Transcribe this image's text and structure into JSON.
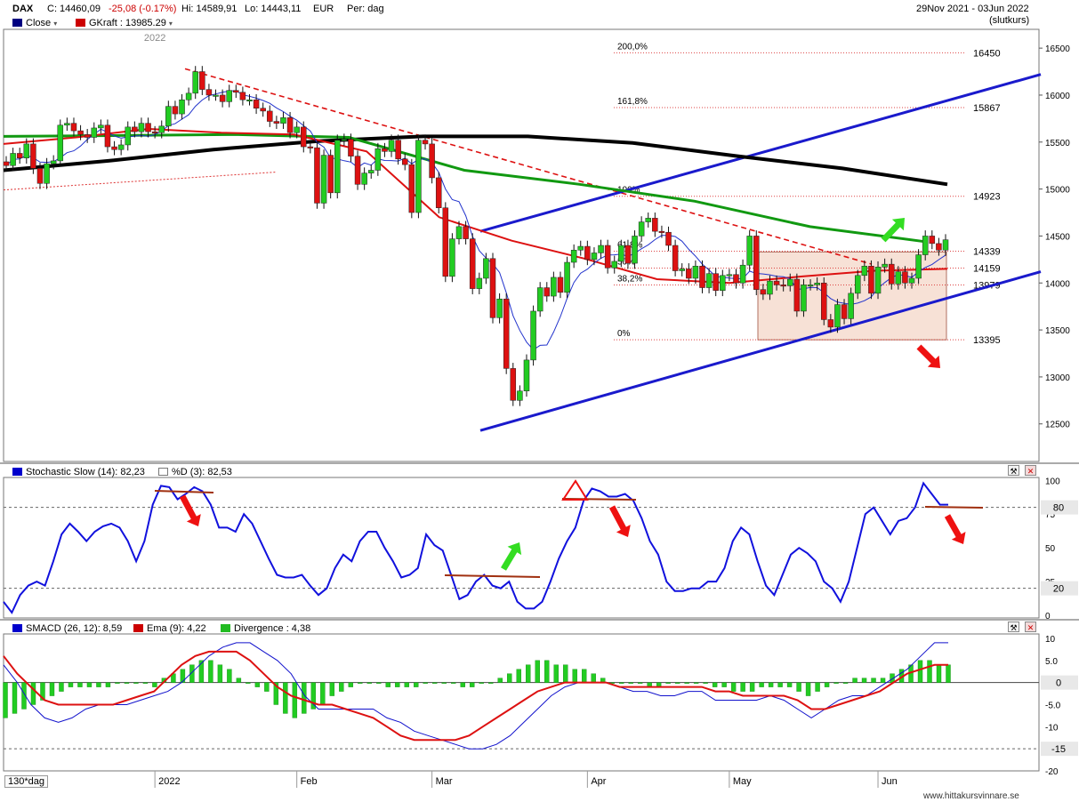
{
  "header": {
    "symbol": "DAX",
    "close": "C: 14460,09",
    "change": "-25,08 (-0.17%)",
    "high": "Hi: 14589,91",
    "low": "Lo: 14443,11",
    "currency": "EUR",
    "period": "Per: dag",
    "date_range": "29Nov 2021 - 03Jun 2022",
    "date_note": "(slutkurs)",
    "legend": [
      {
        "label": "Close",
        "color": "#000080"
      },
      {
        "label": "GKraft : 13985.29",
        "color": "#cc0000"
      }
    ]
  },
  "colors": {
    "up_candle": "#22cc22",
    "down_candle": "#dd1111",
    "trendline": "#1a1acc",
    "ma_black": "#000000",
    "ma_green": "#119911",
    "ma_red": "#dd1111",
    "arrow_red": "#ee1111",
    "arrow_green": "#33dd22"
  },
  "footer": {
    "period": "130*dag",
    "watermark": "www.hittakursvinnare.se"
  },
  "chart_data": [
    {
      "type": "candlestick",
      "title": "DAX",
      "ylim": [
        12100,
        16700
      ],
      "yticks": [
        12500,
        13000,
        13500,
        14000,
        14500,
        15000,
        15500,
        16000,
        16500
      ],
      "x_tick_labels": [
        "2022",
        "Feb",
        "Mar",
        "Apr",
        "May",
        "Jun"
      ],
      "year_label": "2022",
      "series": [
        {
          "name": "Close",
          "values": [
            15250,
            15380,
            15330,
            15480,
            15220,
            15060,
            15270,
            15300,
            15680,
            15700,
            15620,
            15580,
            15550,
            15650,
            15680,
            15450,
            15420,
            15470,
            15660,
            15610,
            15700,
            15610,
            15600,
            15670,
            15880,
            15800,
            15950,
            16020,
            16250,
            16060,
            16000,
            16000,
            15930,
            16050,
            16030,
            15950,
            15950,
            15860,
            15830,
            15720,
            15700,
            15760,
            15600,
            15660,
            15450,
            15440,
            14850,
            15360,
            14960,
            15520,
            15530,
            15350,
            15050,
            15170,
            15200,
            15430,
            15400,
            15520,
            15320,
            15260,
            14750,
            15520,
            15480,
            15120,
            14800,
            14070,
            14470,
            14600,
            14470,
            13940,
            14050,
            14260,
            13630,
            13830,
            13090,
            12750,
            12850,
            13180,
            13700,
            13950,
            13860,
            14060,
            13900,
            14220,
            14350,
            14390,
            14250,
            14320,
            14400,
            14160,
            14230,
            14400,
            14210,
            14500,
            14650,
            14690,
            14550,
            14540,
            14400,
            14130,
            14150,
            14050,
            14180,
            13950,
            14100,
            13920,
            14080,
            14090,
            14000,
            14190,
            14500,
            13930,
            13880,
            14020,
            13980,
            13970,
            14040,
            13700,
            13980,
            13980,
            14000,
            13610,
            13530,
            13770,
            13620,
            13890,
            14080,
            14180,
            13890,
            14170,
            14200,
            13990,
            14120,
            14000,
            14050,
            14300,
            14500,
            14420,
            14350,
            14460
          ],
          "note": "approximate daily closes, 29 Nov 2021 to 03 Jun 2022"
        },
        {
          "name": "Moving average (black)",
          "values": [
            15200,
            15300,
            15420,
            15510,
            15560,
            15560,
            15490,
            15350,
            15220,
            15050
          ]
        },
        {
          "name": "Moving average (green)",
          "values": [
            15560,
            15570,
            15580,
            15550,
            15200,
            15050,
            14870,
            14600,
            14440
          ]
        },
        {
          "name": "GKraft",
          "values": [
            15480,
            15550,
            15640,
            15600,
            15580,
            15400,
            14700,
            14450,
            14260,
            14040,
            14000,
            14070,
            14130,
            14150
          ]
        }
      ],
      "price_labels": [
        {
          "label": "16450",
          "value": 16450
        },
        {
          "label": "15867",
          "value": 15867
        },
        {
          "label": "14923",
          "value": 14923
        },
        {
          "label": "14339",
          "value": 14339
        },
        {
          "label": "14159",
          "value": 14159
        },
        {
          "label": "13979",
          "value": 13979
        },
        {
          "label": "13395",
          "value": 13395
        }
      ],
      "fib_labels": [
        "200,0%",
        "161,8%",
        "100%",
        "61,8%",
        "50%",
        "38,2%",
        "0%"
      ],
      "fib_levels": [
        16450,
        15867,
        14923,
        14339,
        14159,
        13979,
        13395
      ]
    },
    {
      "type": "line",
      "title": "Stochastic Slow (14): 82,23",
      "legend": [
        {
          "label": "Stochastic Slow (14): 82,23",
          "color": "#000080"
        },
        {
          "label": "%D (3): 82,53",
          "color": "#ffffff"
        }
      ],
      "ylim": [
        0,
        100
      ],
      "yticks": [
        0,
        25,
        50,
        75,
        100
      ],
      "levels": [
        {
          "label": "80",
          "value": 80
        },
        {
          "label": "20",
          "value": 20
        }
      ],
      "series": [
        {
          "name": "Stochastic Slow",
          "values": [
            10,
            2,
            15,
            22,
            25,
            22,
            40,
            60,
            68,
            62,
            55,
            62,
            66,
            68,
            65,
            55,
            40,
            55,
            82,
            96,
            95,
            86,
            90,
            95,
            92,
            82,
            65,
            65,
            62,
            75,
            68,
            55,
            42,
            30,
            28,
            28,
            30,
            22,
            15,
            20,
            35,
            45,
            40,
            55,
            62,
            62,
            50,
            40,
            28,
            30,
            35,
            60,
            52,
            48,
            30,
            12,
            15,
            25,
            30,
            22,
            20,
            25,
            10,
            5,
            5,
            10,
            25,
            42,
            55,
            65,
            85,
            94,
            92,
            88,
            88,
            90,
            85,
            72,
            55,
            45,
            25,
            18,
            18,
            20,
            20,
            25,
            25,
            35,
            55,
            65,
            60,
            40,
            22,
            15,
            30,
            45,
            50,
            46,
            40,
            25,
            20,
            10,
            25,
            50,
            75,
            80,
            70,
            60,
            70,
            72,
            80,
            98,
            90,
            82,
            82
          ]
        }
      ]
    },
    {
      "type": "bar",
      "title": "SMACD (26, 12): 8,59",
      "legend": [
        {
          "label": "SMACD (26, 12): 8,59",
          "color": "#000080"
        },
        {
          "label": "Ema (9): 4,22",
          "color": "#cc0000"
        },
        {
          "label": "Divergence : 4,38",
          "color": "#22bb22"
        }
      ],
      "ylim": [
        -20,
        11
      ],
      "yticks": [
        -20,
        -15,
        -10,
        -5,
        0,
        5,
        10
      ],
      "ytick_labels": [
        "-20",
        "-15",
        "-10",
        "-5.0",
        "0",
        "5.0",
        "10"
      ],
      "levels": [
        {
          "label": "0",
          "value": 0
        },
        {
          "label": "-15",
          "value": -15
        }
      ],
      "series": [
        {
          "name": "SMACD",
          "values": [
            4,
            0,
            -5,
            -8,
            -9,
            -8,
            -6,
            -5,
            -5,
            -5,
            -4,
            -3,
            -2,
            0,
            3,
            6,
            8,
            9,
            9,
            7,
            5,
            2,
            -3,
            -6,
            -6,
            -6,
            -6,
            -6,
            -8,
            -9,
            -11,
            -12,
            -13,
            -14,
            -15,
            -15,
            -14,
            -12,
            -9,
            -6,
            -3,
            -1,
            0,
            0,
            0,
            -1,
            -2,
            -2,
            -3,
            -3,
            -2,
            -2,
            -4,
            -4,
            -4,
            -4,
            -3,
            -4,
            -6,
            -8,
            -6,
            -4,
            -3,
            -3,
            -1,
            1,
            3,
            6,
            9,
            9
          ]
        },
        {
          "name": "Ema",
          "values": [
            6,
            2,
            -1,
            -4,
            -5,
            -5,
            -5,
            -5,
            -5,
            -4,
            -3,
            -2,
            1,
            4,
            6,
            7,
            7,
            7,
            5,
            2,
            -1,
            -3,
            -4,
            -5,
            -5,
            -6,
            -7,
            -8,
            -10,
            -12,
            -13,
            -13,
            -13,
            -13,
            -12,
            -10,
            -8,
            -6,
            -4,
            -2,
            -1,
            0,
            0,
            0,
            0,
            -1,
            -1,
            -1,
            -1,
            -1,
            -1,
            -1,
            -2,
            -2,
            -3,
            -3,
            -3,
            -3,
            -4,
            -6,
            -6,
            -5,
            -4,
            -3,
            -2,
            0,
            2,
            3,
            4,
            4
          ]
        },
        {
          "name": "Divergence",
          "values": [
            -8,
            -7,
            -6,
            -5,
            -4,
            -3,
            -2,
            -1,
            -1,
            -1,
            -1,
            -1,
            0,
            0,
            0,
            0,
            -1,
            1,
            2,
            3,
            4,
            5,
            5,
            4,
            3,
            1,
            0,
            -1,
            -2,
            -5,
            -7,
            -8,
            -7,
            -6,
            -5,
            -3,
            -2,
            -1,
            0,
            0,
            0,
            -1,
            -1,
            -1,
            -1,
            0,
            0,
            0,
            0,
            -1,
            -1,
            0,
            0,
            1,
            2,
            3,
            4,
            5,
            5,
            4,
            4,
            3,
            3,
            2,
            1,
            0,
            0,
            0,
            0,
            -1,
            -1,
            0,
            0,
            0,
            0,
            0,
            -1,
            -1,
            -2,
            -2,
            -2,
            -1,
            -1,
            -1,
            -1,
            -2,
            -3,
            -2,
            -1,
            0,
            0,
            1,
            1,
            1,
            1,
            2,
            3,
            4,
            5,
            5,
            4,
            4
          ]
        }
      ]
    }
  ]
}
